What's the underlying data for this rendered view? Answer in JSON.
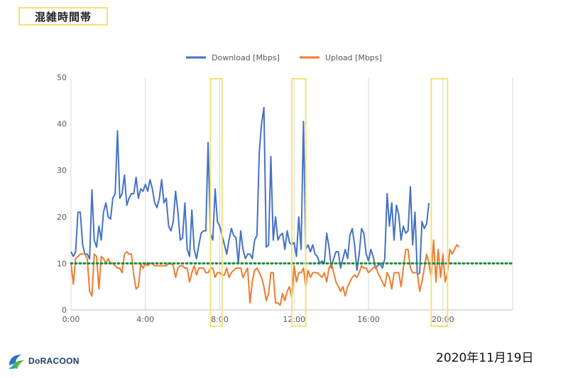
{
  "page": {
    "title": "混雑時間帯",
    "date": "2020年11月19日",
    "logo_text": "DoRACOON",
    "logo_icon": "doracoon-logo-icon"
  },
  "chart_data": {
    "type": "line",
    "title": "",
    "xlabel": "",
    "ylabel": "",
    "ylim": [
      0,
      50
    ],
    "xlim": [
      0,
      23.75
    ],
    "yticks": [
      0,
      10,
      20,
      30,
      40,
      50
    ],
    "xticks": [
      {
        "value": 0,
        "label": "0:00"
      },
      {
        "value": 4,
        "label": "4:00"
      },
      {
        "value": 8,
        "label": "8:00"
      },
      {
        "value": 12,
        "label": "12:00"
      },
      {
        "value": 16,
        "label": "16:00"
      },
      {
        "value": 20,
        "label": "20:00"
      }
    ],
    "grid": "vertical",
    "legend": "top",
    "series": [
      {
        "name": "Download [Mbps]",
        "color": "#4472c4",
        "x_step_hours": 0.125,
        "values": [
          12.5,
          11.5,
          12.5,
          21,
          21,
          14,
          12,
          12,
          11,
          25.8,
          15,
          13.5,
          18,
          15,
          21,
          23,
          20,
          19.5,
          24,
          25,
          38.5,
          24,
          25,
          29,
          22.5,
          24,
          25,
          25,
          28.5,
          24,
          26,
          25.5,
          27,
          25.5,
          28,
          26,
          23,
          22,
          24,
          28,
          23,
          24,
          18,
          17,
          19,
          25.5,
          21,
          15,
          15.5,
          23,
          13,
          11.5,
          21.5,
          13,
          11,
          14,
          16.5,
          17,
          17,
          36,
          16.5,
          15,
          26,
          19,
          18,
          16,
          14,
          12,
          15,
          17.5,
          16,
          15.5,
          10,
          17,
          13,
          11,
          12,
          12,
          11,
          15,
          16,
          34,
          40,
          43.5,
          13.5,
          14,
          33,
          15,
          20,
          15,
          16,
          16.5,
          13,
          17,
          14.5,
          14,
          14.5,
          11.5,
          20,
          13,
          40.5,
          13,
          14,
          12.5,
          14,
          12,
          11.5,
          10,
          10.5,
          10,
          16.5,
          13.5,
          9,
          11,
          12.5,
          12.5,
          9,
          11,
          13,
          11,
          16,
          17.5,
          14,
          8.5,
          12,
          17.5,
          16.5,
          12,
          10.5,
          13,
          11.5,
          9,
          9.5,
          10,
          9,
          11,
          25,
          18,
          23,
          15,
          22.5,
          20.5,
          15,
          18,
          16.5,
          17,
          26.5,
          14,
          21,
          7.5,
          8,
          19,
          17.5,
          18.5,
          23
        ]
      },
      {
        "name": "Upload [Mbps]",
        "color": "#ed7d31",
        "x_step_hours": 0.125,
        "values": [
          10,
          5.5,
          11,
          11.5,
          12,
          12,
          12,
          11,
          4,
          3,
          12,
          11.5,
          4.5,
          11.5,
          11,
          10,
          11,
          10,
          10,
          9.5,
          9,
          9,
          8,
          12,
          12.5,
          12,
          12,
          7.5,
          4.5,
          5,
          10,
          9,
          10,
          9.5,
          10,
          10,
          9.5,
          9.5,
          9.5,
          9.5,
          9.5,
          9.5,
          10,
          10,
          9.5,
          7,
          9,
          9.5,
          9.5,
          9,
          9,
          6,
          8,
          9.5,
          7.5,
          9,
          9,
          9,
          8,
          8,
          9,
          9,
          7,
          8,
          8,
          7.5,
          7.5,
          9,
          7,
          8,
          8.5,
          9,
          9,
          9,
          7,
          8,
          9,
          1.5,
          6,
          8.5,
          9,
          8,
          7,
          5,
          2,
          3.5,
          8,
          8,
          1.5,
          1.5,
          1,
          3.5,
          2,
          4,
          5,
          2.5,
          9.5,
          6,
          8,
          8,
          9,
          5,
          8.5,
          7,
          8,
          8,
          8,
          7.5,
          7,
          8,
          6,
          9,
          10,
          8,
          6,
          5,
          4,
          5,
          3,
          5,
          6,
          7,
          7.5,
          7,
          8,
          9.5,
          9,
          9,
          8,
          8.5,
          9,
          9.5,
          8,
          7,
          6,
          5,
          8,
          7,
          4.5,
          8,
          8,
          8,
          5,
          9,
          13,
          13,
          9,
          8,
          8,
          8,
          4,
          6,
          9,
          12,
          10,
          7,
          15,
          6,
          13,
          7,
          12,
          6,
          8,
          13,
          12,
          13,
          14,
          13.5
        ]
      }
    ],
    "reference_line": {
      "value": 10,
      "color": "#1e8a3c",
      "style": "dotted"
    },
    "highlight_windows": [
      {
        "x0": 7.5,
        "x1": 8.125
      },
      {
        "x0": 11.875,
        "x1": 12.625
      },
      {
        "x0": 19.375,
        "x1": 20.25
      }
    ],
    "highlight_color": "#f2e279"
  }
}
